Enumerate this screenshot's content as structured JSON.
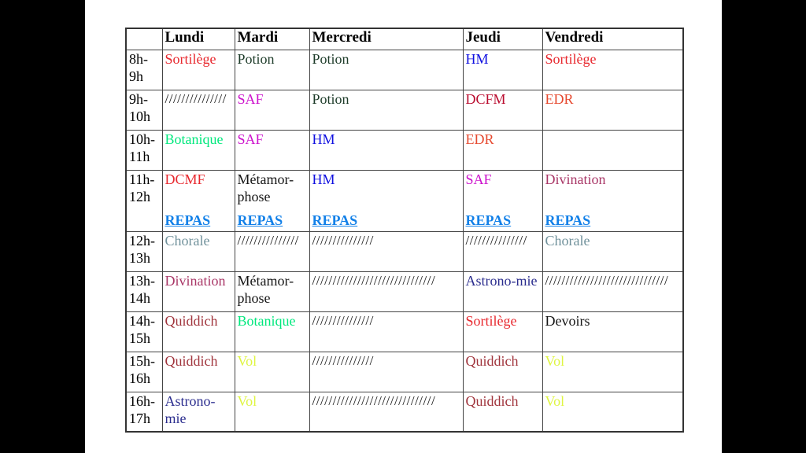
{
  "page": {
    "background": "#ffffff",
    "letterbox_color": "#000000"
  },
  "palette": {
    "red": "#e8282e",
    "dark_green": "#1d3b29",
    "blue": "#0f0fe0",
    "magenta": "#cc10cc",
    "crimson": "#ba0c2f",
    "orange_red": "#e6492f",
    "spring_green": "#00e87d",
    "slate_teal": "#70919b",
    "maroon_pink": "#a93767",
    "navy": "#2b2d8e",
    "firebrick": "#a0343c",
    "yellow_green": "#dff541",
    "black": "#151515",
    "repas_blue": "#1280e8"
  },
  "timetable": {
    "corner_label": "",
    "day_headers": [
      "Lundi",
      "Mardi",
      "Mercredi",
      "Jeudi",
      "Vendredi"
    ],
    "repas_label": "REPAS",
    "rows": [
      {
        "time": "8h-9h",
        "cells": [
          {
            "text": "Sortilège",
            "color": "red"
          },
          {
            "text": "Potion",
            "color": "dark_green"
          },
          {
            "text": "Potion",
            "color": "dark_green"
          },
          {
            "text": "HM",
            "color": "blue"
          },
          {
            "text": "Sortilège",
            "color": "red"
          }
        ]
      },
      {
        "time": "9h-10h",
        "cells": [
          {
            "text": "///////////////",
            "color": "black"
          },
          {
            "text": "SAF",
            "color": "magenta"
          },
          {
            "text": "Potion",
            "color": "dark_green"
          },
          {
            "text": "DCFM",
            "color": "crimson"
          },
          {
            "text": "EDR",
            "color": "orange_red"
          }
        ]
      },
      {
        "time": "10h-11h",
        "cells": [
          {
            "text": "Botanique",
            "color": "spring_green"
          },
          {
            "text": "SAF",
            "color": "magenta"
          },
          {
            "text": "HM",
            "color": "blue"
          },
          {
            "text": "EDR",
            "color": "orange_red"
          },
          {
            "text": "",
            "color": "black"
          }
        ]
      },
      {
        "time": "11h-12h",
        "has_repas": true,
        "cells": [
          {
            "text": "DCMF",
            "color": "red"
          },
          {
            "text": "Métamor-phose",
            "color": "black"
          },
          {
            "text": "HM",
            "color": "blue"
          },
          {
            "text": "SAF",
            "color": "magenta"
          },
          {
            "text": "Divination",
            "color": "maroon_pink"
          }
        ]
      },
      {
        "time": "12h-13h",
        "cells": [
          {
            "text": "Chorale",
            "color": "slate_teal"
          },
          {
            "text": "///////////////",
            "color": "black"
          },
          {
            "text": "///////////////",
            "color": "black"
          },
          {
            "text": "///////////////",
            "color": "black"
          },
          {
            "text": "Chorale",
            "color": "slate_teal"
          }
        ]
      },
      {
        "time": "13h-14h",
        "cells": [
          {
            "text": "Divination",
            "color": "maroon_pink"
          },
          {
            "text": "Métamor-phose",
            "color": "black"
          },
          {
            "text": "//////////////////////////////",
            "color": "black"
          },
          {
            "text": "Astrono-mie",
            "color": "navy"
          },
          {
            "text": "//////////////////////////////",
            "color": "black"
          }
        ]
      },
      {
        "time": "14h-15h",
        "cells": [
          {
            "text": "Quiddich",
            "color": "firebrick"
          },
          {
            "text": "Botanique",
            "color": "spring_green"
          },
          {
            "text": "///////////////",
            "color": "black"
          },
          {
            "text": "Sortilège",
            "color": "red"
          },
          {
            "text": "Devoirs",
            "color": "black"
          }
        ]
      },
      {
        "time": "15h-16h",
        "cells": [
          {
            "text": "Quiddich",
            "color": "firebrick"
          },
          {
            "text": "Vol",
            "color": "yellow_green"
          },
          {
            "text": "///////////////",
            "color": "black"
          },
          {
            "text": "Quiddich",
            "color": "firebrick"
          },
          {
            "text": "Vol",
            "color": "yellow_green"
          }
        ]
      },
      {
        "time": "16h-17h",
        "cells": [
          {
            "text": "Astrono-mie",
            "color": "navy"
          },
          {
            "text": "Vol",
            "color": "yellow_green"
          },
          {
            "text": "//////////////////////////////",
            "color": "black"
          },
          {
            "text": "Quiddich",
            "color": "firebrick"
          },
          {
            "text": "Vol",
            "color": "yellow_green"
          }
        ]
      }
    ]
  }
}
